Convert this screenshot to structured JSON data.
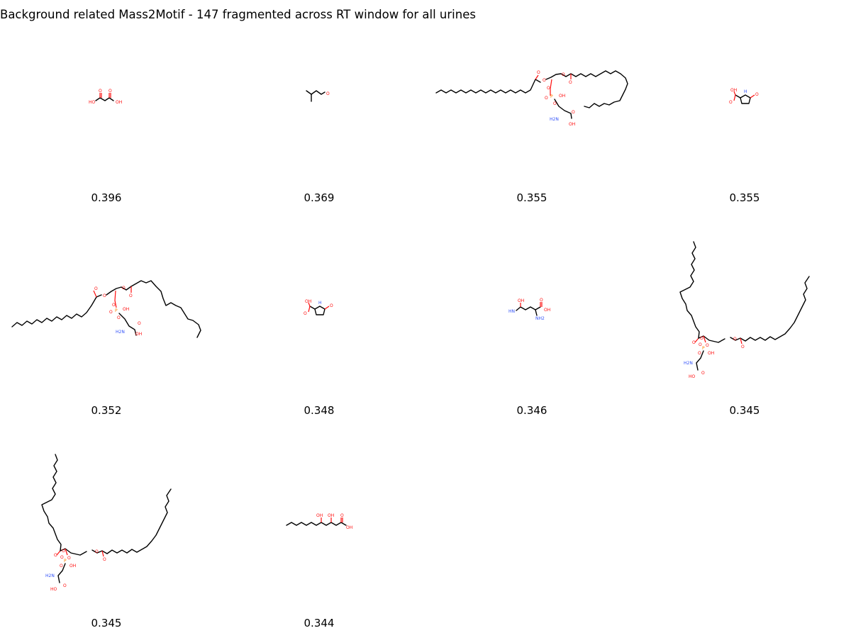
{
  "title": "Background related Mass2Motif - 147 fragmented across RT window for all urines",
  "atom_labels": {
    "O": "O",
    "OH": "OH",
    "HO": "HO",
    "H": "H",
    "N": "N",
    "HN": "HN",
    "NH2": "NH2",
    "H2N": "H2N",
    "P": "P"
  },
  "colors": {
    "oxygen": "#ff0d0d",
    "nitrogen": "#3050f8",
    "phosphorus": "#ff8000",
    "bond": "#000000"
  },
  "molecules": [
    {
      "score": "0.396",
      "structure": "malonic-acid"
    },
    {
      "score": "0.369",
      "structure": "isovaleraldehyde"
    },
    {
      "score": "0.355",
      "structure": "phosphatidylserine-long"
    },
    {
      "score": "0.355",
      "structure": "pyroglutamic-acid"
    },
    {
      "score": "0.352",
      "structure": "phosphatidylserine-polyunsaturated"
    },
    {
      "score": "0.348",
      "structure": "pyroglutamic-acid"
    },
    {
      "score": "0.346",
      "structure": "glutamine-like"
    },
    {
      "score": "0.345",
      "structure": "phosphatidylserine-dioleoyl"
    },
    {
      "score": "0.345",
      "structure": "phosphatidylserine-dioleoyl"
    },
    {
      "score": "0.344",
      "structure": "dihydroxy-fatty-acid"
    }
  ]
}
